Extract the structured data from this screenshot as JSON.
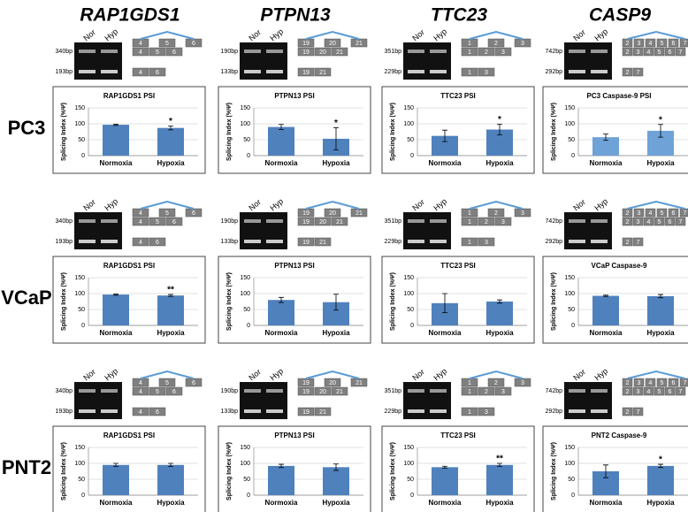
{
  "genes": [
    {
      "name": "RAP1GDS1",
      "bands": [
        "340bp",
        "193bp"
      ],
      "exons": [
        "4",
        "5",
        "6"
      ],
      "isoforms": [
        [
          "4",
          "5",
          "6"
        ],
        [
          "4",
          "6"
        ]
      ]
    },
    {
      "name": "PTPN13",
      "bands": [
        "190bp",
        "133bp"
      ],
      "exons": [
        "19",
        "20",
        "21"
      ],
      "isoforms": [
        [
          "19",
          "20",
          "21"
        ],
        [
          "19",
          "21"
        ]
      ]
    },
    {
      "name": "TTC23",
      "bands": [
        "351bp",
        "229bp"
      ],
      "exons": [
        "1",
        "2",
        "3"
      ],
      "isoforms": [
        [
          "1",
          "2",
          "3"
        ],
        [
          "1",
          "3"
        ]
      ]
    },
    {
      "name": "CASP9",
      "bands": [
        "742bp",
        "292bp"
      ],
      "exons": [
        "2",
        "3",
        "4",
        "5",
        "6",
        "7"
      ],
      "isoforms": [
        [
          "2",
          "3",
          "4",
          "5",
          "6",
          "7"
        ],
        [
          "2",
          "7"
        ]
      ]
    }
  ],
  "lanes": [
    "Nor",
    "Hyp"
  ],
  "cell_lines": [
    "PC3",
    "VCaP",
    "PNT2"
  ],
  "chart_data": [
    {
      "type": "bar",
      "title": "RAP1GDS1 PSI",
      "y_label": "Splicing Index (%Ψ)",
      "categories": [
        "Normoxia",
        "Hypoxia"
      ],
      "values": [
        97,
        87
      ],
      "errors": [
        2,
        6
      ],
      "color": "#4f81bd",
      "ylim": [
        0,
        150
      ],
      "yticks": [
        0,
        50,
        100,
        150
      ],
      "grid": true,
      "annotation": "*",
      "annotation_category": "Hypoxia"
    },
    {
      "type": "bar",
      "title": "PTPN13 PSI",
      "y_label": "Splicing Index (%Ψ)",
      "categories": [
        "Normoxia",
        "Hypoxia"
      ],
      "values": [
        90,
        53
      ],
      "errors": [
        8,
        35
      ],
      "color": "#4f81bd",
      "ylim": [
        0,
        150
      ],
      "yticks": [
        0,
        50,
        100,
        150
      ],
      "grid": true,
      "annotation": "*",
      "annotation_category": "Hypoxia"
    },
    {
      "type": "bar",
      "title": "TTC23 PSI",
      "y_label": "Splicing Index (%Ψ)",
      "categories": [
        "Normoxia",
        "Hypoxia"
      ],
      "values": [
        62,
        82
      ],
      "errors": [
        18,
        17
      ],
      "color": "#4f81bd",
      "ylim": [
        0,
        150
      ],
      "yticks": [
        0,
        50,
        100,
        150
      ],
      "grid": true,
      "annotation": "*",
      "annotation_category": "Hypoxia"
    },
    {
      "type": "bar",
      "title": "PC3 Caspase-9 PSI",
      "y_label": "Splicing Index (%Ψ)",
      "categories": [
        "Normoxia",
        "Hypoxia"
      ],
      "values": [
        58,
        78
      ],
      "errors": [
        10,
        20
      ],
      "color": "#6fa3d8",
      "ylim": [
        0,
        150
      ],
      "yticks": [
        0,
        50,
        100,
        150
      ],
      "grid": true,
      "annotation": "*",
      "annotation_category": "Hypoxia"
    },
    {
      "type": "bar",
      "title": "RAP1GDS1 PSI",
      "y_label": "Splicing Index (%Ψ)",
      "categories": [
        "Normoxia",
        "Hypoxia"
      ],
      "values": [
        97,
        94
      ],
      "errors": [
        2,
        3
      ],
      "color": "#4f81bd",
      "ylim": [
        0,
        150
      ],
      "yticks": [
        0,
        50,
        100,
        150
      ],
      "grid": true,
      "annotation": "**",
      "annotation_category": "Hypoxia"
    },
    {
      "type": "bar",
      "title": "PTPN13 PSI",
      "y_label": "Splicing Index (%Ψ)",
      "categories": [
        "Normoxia",
        "Hypoxia"
      ],
      "values": [
        80,
        73
      ],
      "errors": [
        8,
        25
      ],
      "color": "#4f81bd",
      "ylim": [
        0,
        150
      ],
      "yticks": [
        0,
        50,
        100,
        150
      ],
      "grid": true
    },
    {
      "type": "bar",
      "title": "TTC23 PSI",
      "y_label": "Splicing Index (%Ψ)",
      "categories": [
        "Normoxia",
        "Hypoxia"
      ],
      "values": [
        70,
        75
      ],
      "errors": [
        30,
        5
      ],
      "color": "#4f81bd",
      "ylim": [
        0,
        150
      ],
      "yticks": [
        0,
        50,
        100,
        150
      ],
      "grid": true
    },
    {
      "type": "bar",
      "title": "VCaP Caspase-9",
      "y_label": "Splicing Index (%Ψ)",
      "categories": [
        "Normoxia",
        "Hypoxia"
      ],
      "values": [
        93,
        92
      ],
      "errors": [
        2,
        5
      ],
      "color": "#4f81bd",
      "ylim": [
        0,
        150
      ],
      "yticks": [
        0,
        50,
        100,
        150
      ],
      "grid": true
    },
    {
      "type": "bar",
      "title": "RAP1GDS1 PSI",
      "y_label": "Splicing Index (%Ψ)",
      "categories": [
        "Normoxia",
        "Hypoxia"
      ],
      "values": [
        95,
        95
      ],
      "errors": [
        5,
        5
      ],
      "color": "#4f81bd",
      "ylim": [
        0,
        150
      ],
      "yticks": [
        0,
        50,
        100,
        150
      ],
      "grid": true
    },
    {
      "type": "bar",
      "title": "PTPN13 PSI",
      "y_label": "Splicing Index (%Ψ)",
      "categories": [
        "Normoxia",
        "Hypoxia"
      ],
      "values": [
        92,
        88
      ],
      "errors": [
        5,
        10
      ],
      "color": "#4f81bd",
      "ylim": [
        0,
        150
      ],
      "yticks": [
        0,
        50,
        100,
        150
      ],
      "grid": true
    },
    {
      "type": "bar",
      "title": "TTC23 PSI",
      "y_label": "Splicing Index (%Ψ)",
      "categories": [
        "Normoxia",
        "Hypoxia"
      ],
      "values": [
        88,
        95
      ],
      "errors": [
        3,
        5
      ],
      "color": "#4f81bd",
      "ylim": [
        0,
        150
      ],
      "yticks": [
        0,
        50,
        100,
        150
      ],
      "grid": true,
      "annotation": "**",
      "annotation_category": "Hypoxia"
    },
    {
      "type": "bar",
      "title": "PNT2 Caspase-9",
      "y_label": "Splicing Index (%Ψ)",
      "categories": [
        "Normoxia",
        "Hypoxia"
      ],
      "values": [
        75,
        92
      ],
      "errors": [
        20,
        5
      ],
      "color": "#4f81bd",
      "ylim": [
        0,
        150
      ],
      "yticks": [
        0,
        50,
        100,
        150
      ],
      "grid": true,
      "annotation": "*",
      "annotation_category": "Hypoxia"
    }
  ]
}
